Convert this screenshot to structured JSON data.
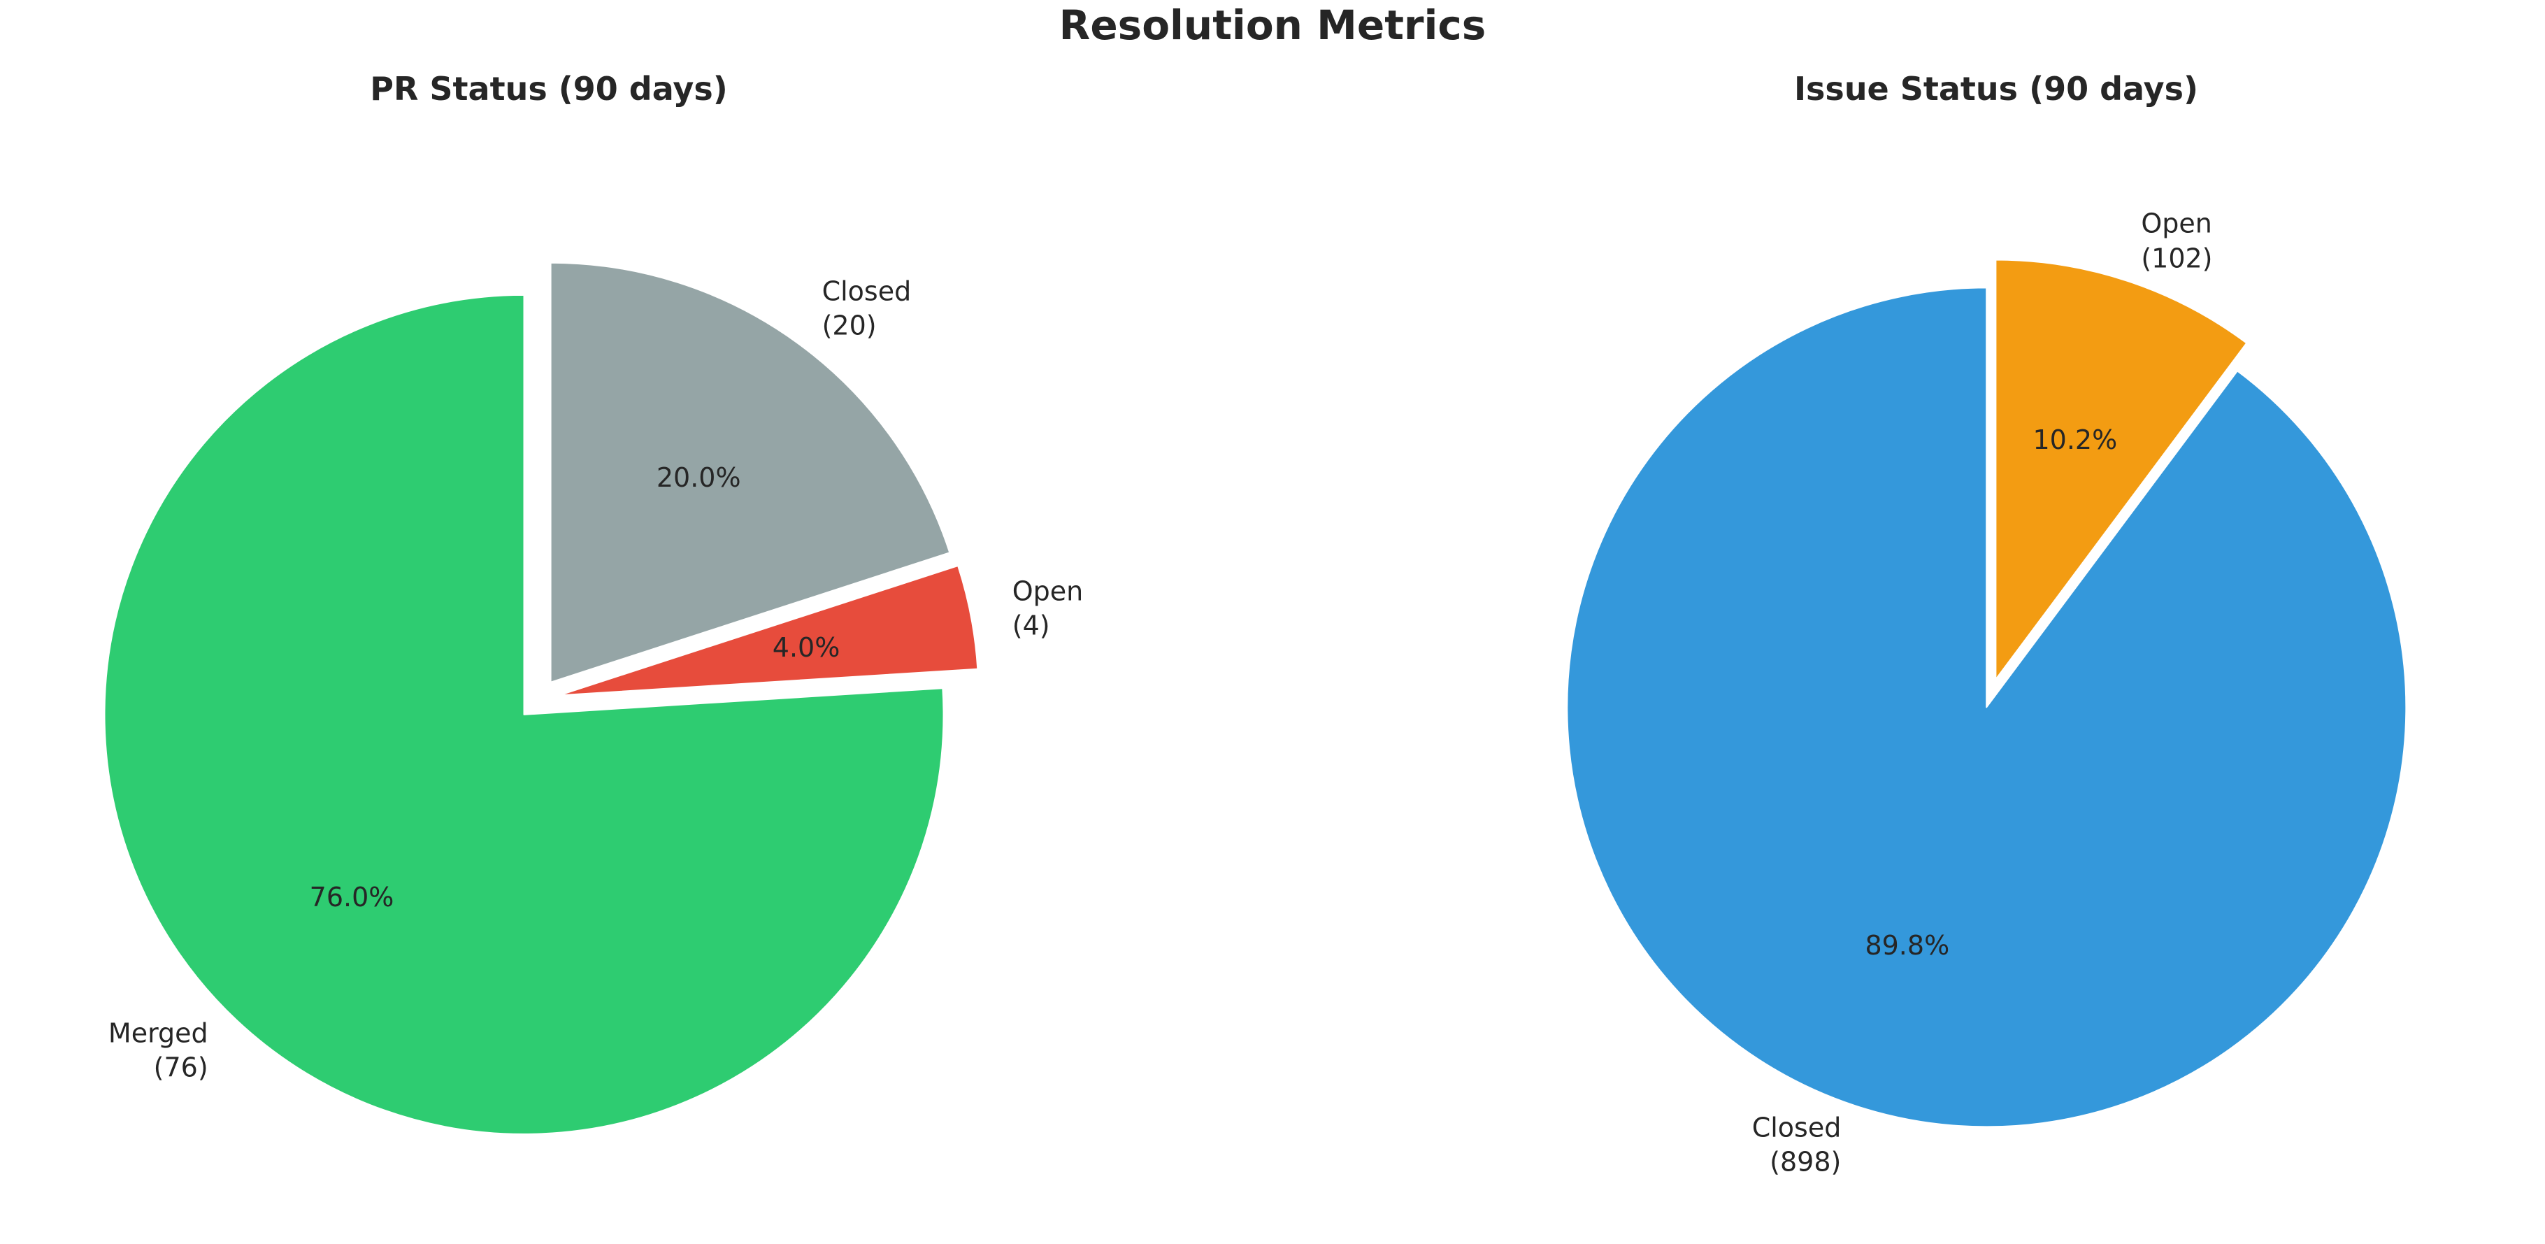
{
  "chart_data": {
    "type": "pie",
    "title": "Resolution Metrics",
    "background": "#ffffff",
    "text_color": "#262626",
    "start_angle": 90,
    "direction": "clockwise",
    "pct_distance": 0.6,
    "label_distance": 1.1,
    "pies": [
      {
        "key": "pr-status",
        "title": "PR Status (90 days)",
        "total": 100,
        "slices": [
          {
            "label": "Closed",
            "value": 20,
            "pct": 20.0,
            "pct_label": "20.0%",
            "label_lines": [
              "Closed",
              "(20)"
            ],
            "color": "#95a5a6",
            "explode": 0.05
          },
          {
            "label": "Open",
            "value": 4,
            "pct": 4.0,
            "pct_label": "4.0%",
            "label_lines": [
              "Open",
              "(4)"
            ],
            "color": "#e74c3c",
            "explode": 0.05
          },
          {
            "label": "Merged",
            "value": 76,
            "pct": 76.0,
            "pct_label": "76.0%",
            "label_lines": [
              "Merged",
              "(76)"
            ],
            "color": "#2ecc71",
            "explode": 0.05
          }
        ]
      },
      {
        "key": "issue-status",
        "title": "Issue Status (90 days)",
        "total": 1000,
        "slices": [
          {
            "label": "Open",
            "value": 102,
            "pct": 10.2,
            "pct_label": "10.2%",
            "label_lines": [
              "Open",
              "(102)"
            ],
            "color": "#f39c12",
            "explode": 0.05
          },
          {
            "label": "Closed",
            "value": 898,
            "pct": 89.8,
            "pct_label": "89.8%",
            "label_lines": [
              "Closed",
              "(898)"
            ],
            "color": "#3498db",
            "explode": 0.02
          }
        ]
      }
    ]
  }
}
